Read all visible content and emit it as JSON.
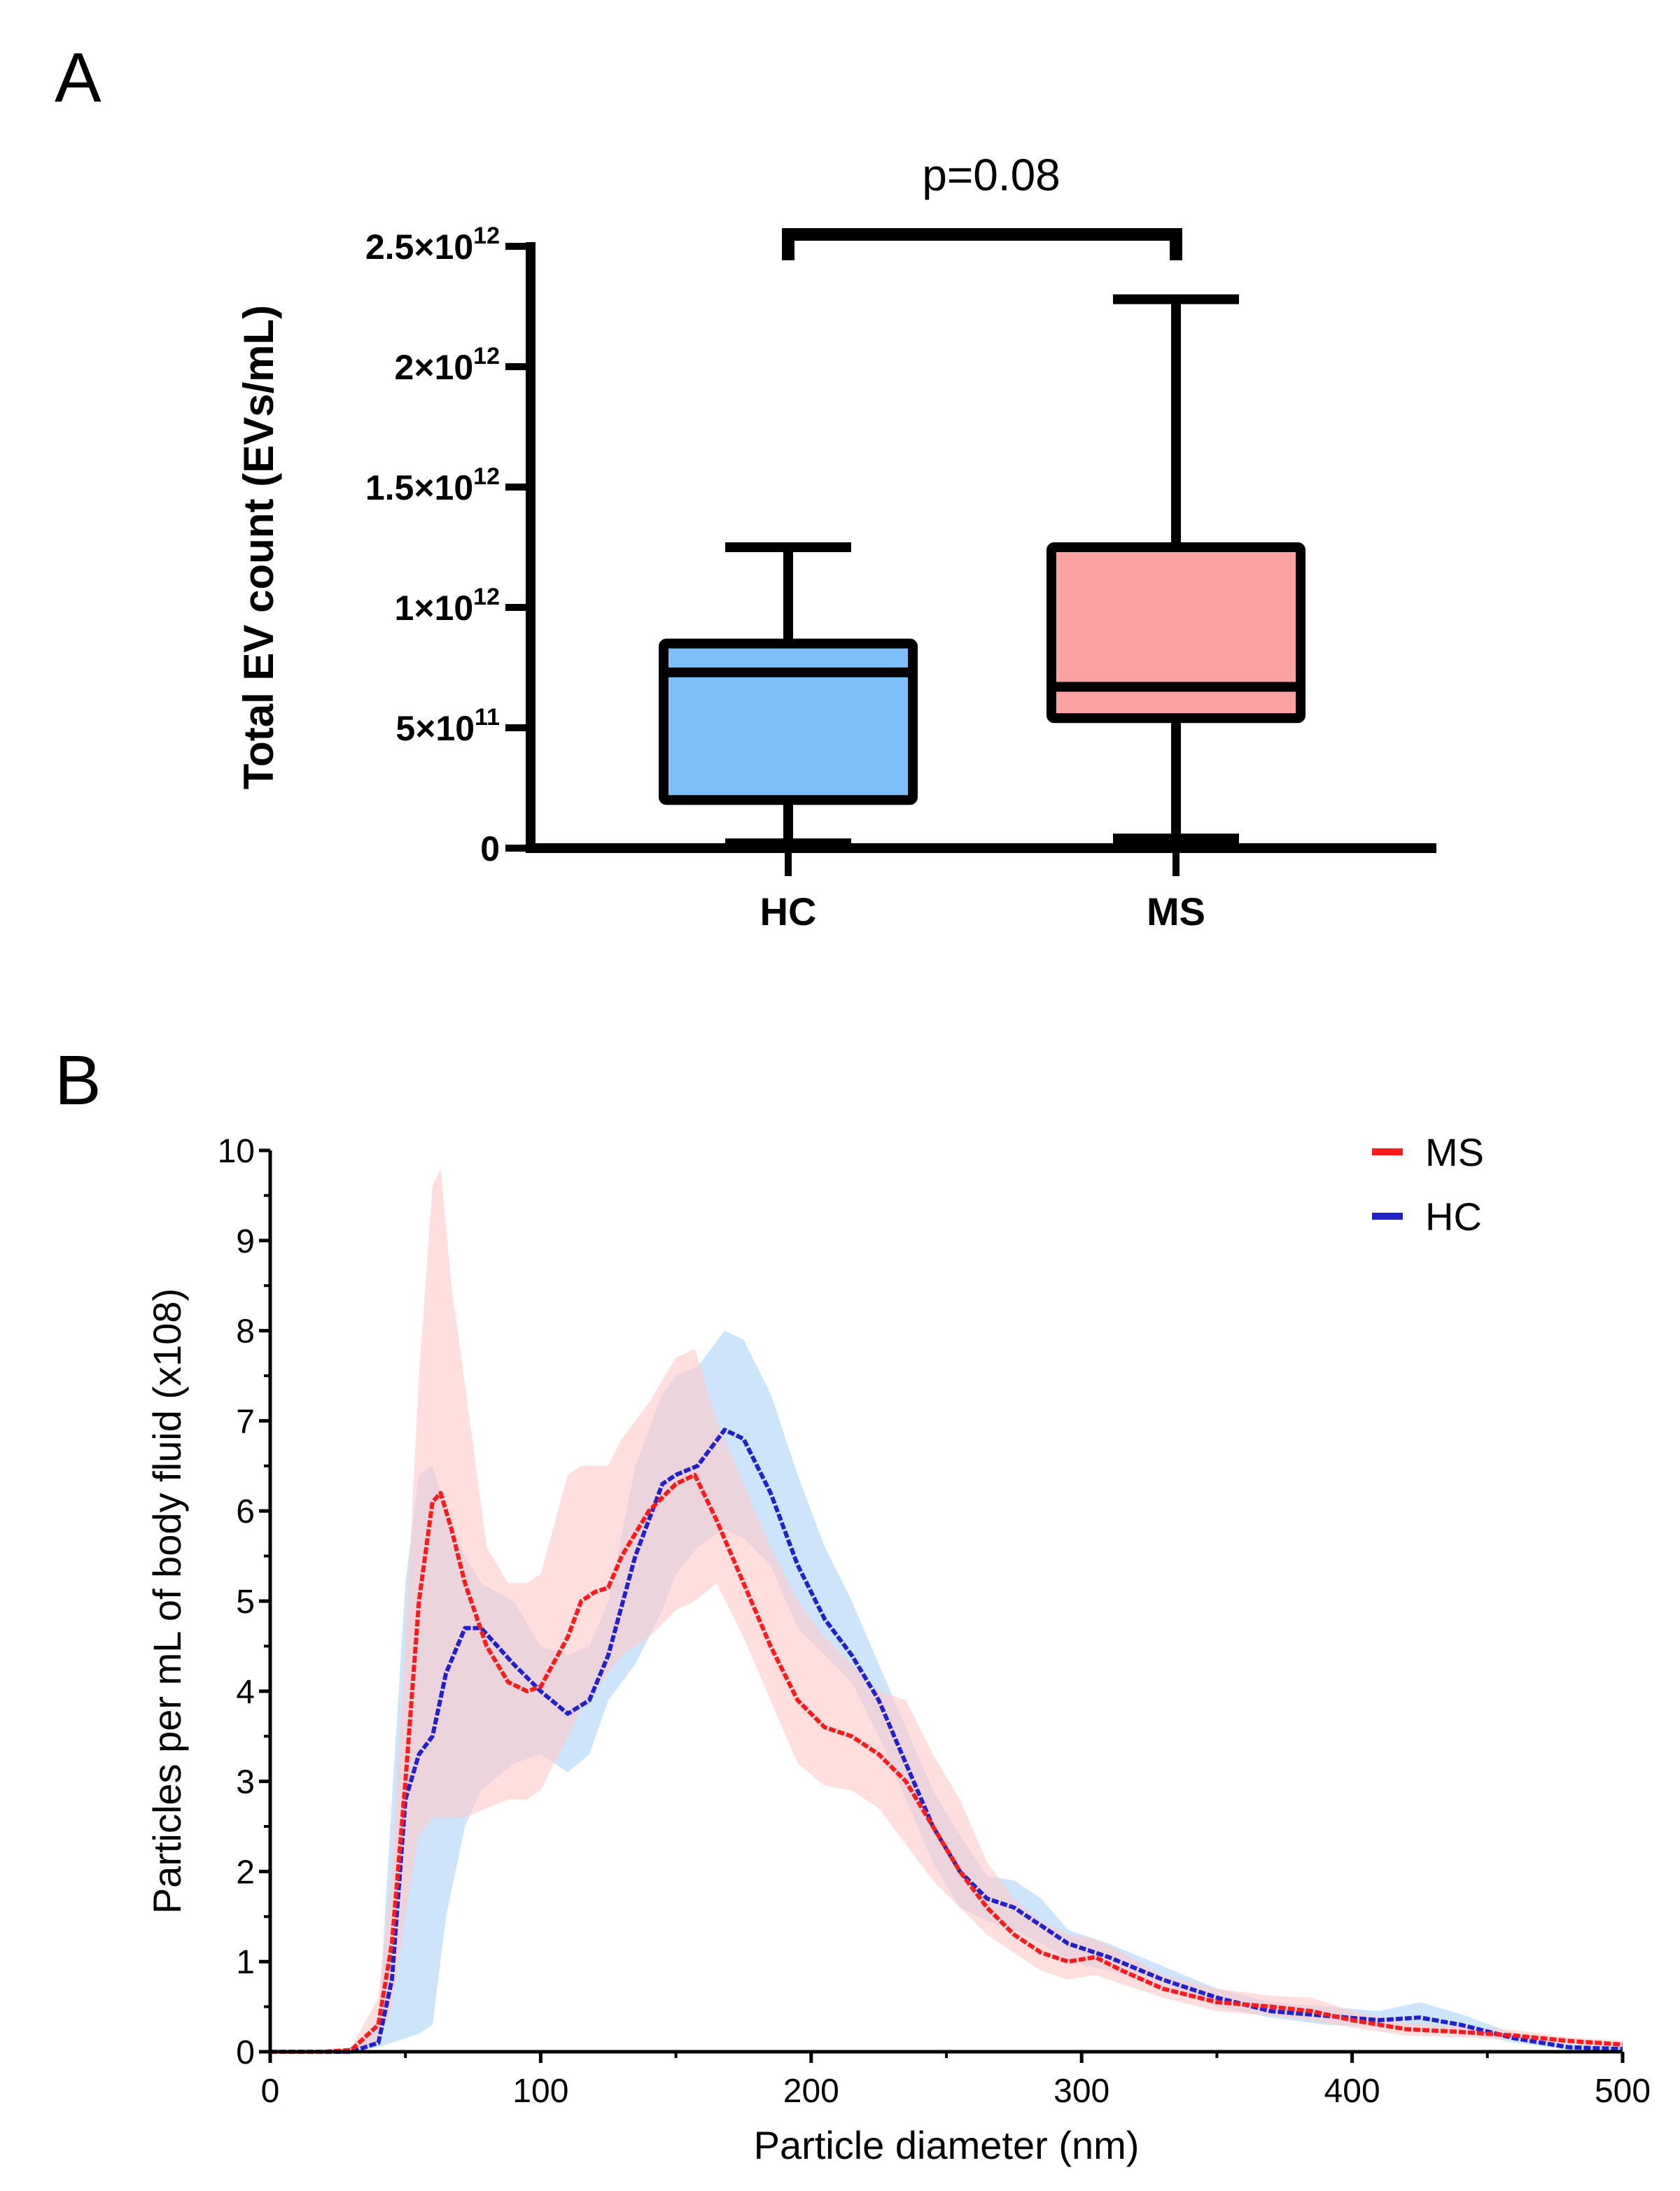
{
  "panels": {
    "a_label": "A",
    "b_label": "B"
  },
  "chart_data": [
    {
      "type": "box",
      "title": "",
      "ylabel": "Total EV count (EVs/mL)",
      "xlabel": "",
      "ylim": [
        0,
        2500000000000.0
      ],
      "yticks": [
        0,
        500000000000.0,
        1000000000000.0,
        1500000000000.0,
        2000000000000.0,
        2500000000000.0
      ],
      "ytick_labels": [
        {
          "base": "0",
          "exp": ""
        },
        {
          "base": "5×10",
          "exp": "11"
        },
        {
          "base": "1×10",
          "exp": "12"
        },
        {
          "base": "1.5×10",
          "exp": "12"
        },
        {
          "base": "2×10",
          "exp": "12"
        },
        {
          "base": "2.5×10",
          "exp": "12"
        }
      ],
      "categories": [
        "HC",
        "MS"
      ],
      "boxes": [
        {
          "name": "HC",
          "min": 20000000000.0,
          "q1": 200000000000.0,
          "median": 730000000000.0,
          "q3": 850000000000.0,
          "max": 1250000000000.0,
          "color": "#7dbff8"
        },
        {
          "name": "MS",
          "min": 40000000000.0,
          "q1": 540000000000.0,
          "median": 670000000000.0,
          "q3": 1250000000000.0,
          "max": 2280000000000.0,
          "color": "#fca2a2"
        }
      ],
      "annotation": "p=0.08"
    },
    {
      "type": "line",
      "title": "",
      "xlabel": "Particle diameter (nm)",
      "ylabel": "Particles per mL of body fluid (x108)",
      "xlim": [
        0,
        500
      ],
      "ylim": [
        0,
        10
      ],
      "xticks": [
        0,
        100,
        200,
        300,
        400,
        500
      ],
      "yticks": [
        0,
        1,
        2,
        3,
        4,
        5,
        6,
        7,
        8,
        9,
        10
      ],
      "legend": "top-right",
      "series": [
        {
          "name": "MS",
          "color": "#ff1a1a",
          "band_color": "#ffc8c8",
          "points": [
            [
              0,
              0,
              0,
              0
            ],
            [
              20,
              0,
              0,
              0
            ],
            [
              30,
              0.02,
              0,
              0.05
            ],
            [
              40,
              0.3,
              0.1,
              0.6
            ],
            [
              45,
              1.2,
              0.5,
              2.0
            ],
            [
              50,
              3.0,
              1.5,
              4.5
            ],
            [
              55,
              5.0,
              2.4,
              7.5
            ],
            [
              60,
              6.1,
              2.6,
              9.6
            ],
            [
              63,
              6.2,
              2.6,
              9.8
            ],
            [
              67,
              5.8,
              2.6,
              8.5
            ],
            [
              72,
              5.2,
              2.6,
              7.4
            ],
            [
              80,
              4.5,
              2.7,
              5.6
            ],
            [
              88,
              4.1,
              2.8,
              5.2
            ],
            [
              95,
              4.0,
              2.8,
              5.2
            ],
            [
              100,
              4.05,
              2.9,
              5.3
            ],
            [
              110,
              4.6,
              3.5,
              6.4
            ],
            [
              115,
              5.0,
              3.8,
              6.5
            ],
            [
              120,
              5.1,
              4.0,
              6.5
            ],
            [
              125,
              5.15,
              4.2,
              6.5
            ],
            [
              130,
              5.5,
              4.4,
              6.8
            ],
            [
              140,
              6.0,
              4.6,
              7.2
            ],
            [
              150,
              6.3,
              4.9,
              7.7
            ],
            [
              157,
              6.4,
              5.0,
              7.8
            ],
            [
              165,
              5.9,
              5.2,
              7.0
            ],
            [
              175,
              5.2,
              4.6,
              6.3
            ],
            [
              185,
              4.5,
              3.9,
              5.6
            ],
            [
              195,
              3.9,
              3.2,
              5.0
            ],
            [
              205,
              3.6,
              2.95,
              4.6
            ],
            [
              215,
              3.5,
              2.9,
              4.3
            ],
            [
              225,
              3.3,
              2.7,
              4.0
            ],
            [
              235,
              3.0,
              2.3,
              3.9
            ],
            [
              245,
              2.5,
              1.9,
              3.3
            ],
            [
              255,
              2.0,
              1.6,
              2.8
            ],
            [
              265,
              1.6,
              1.3,
              2.1
            ],
            [
              275,
              1.3,
              1.1,
              1.7
            ],
            [
              285,
              1.1,
              0.9,
              1.45
            ],
            [
              295,
              1.0,
              0.8,
              1.3
            ],
            [
              305,
              1.05,
              0.85,
              1.25
            ],
            [
              315,
              0.9,
              0.75,
              1.1
            ],
            [
              330,
              0.7,
              0.6,
              0.85
            ],
            [
              350,
              0.55,
              0.45,
              0.7
            ],
            [
              370,
              0.5,
              0.4,
              0.62
            ],
            [
              385,
              0.45,
              0.35,
              0.6
            ],
            [
              400,
              0.35,
              0.27,
              0.45
            ],
            [
              420,
              0.25,
              0.18,
              0.32
            ],
            [
              440,
              0.22,
              0.16,
              0.28
            ],
            [
              460,
              0.18,
              0.13,
              0.24
            ],
            [
              480,
              0.12,
              0.08,
              0.16
            ],
            [
              500,
              0.08,
              0.05,
              0.12
            ]
          ]
        },
        {
          "name": "HC",
          "color": "#2222cc",
          "band_color": "#bcdcf8",
          "points": [
            [
              0,
              0,
              0,
              0
            ],
            [
              30,
              0,
              0,
              0
            ],
            [
              40,
              0.1,
              0.05,
              0.3
            ],
            [
              45,
              0.8,
              0.1,
              2.8
            ],
            [
              50,
              2.8,
              0.15,
              5.2
            ],
            [
              55,
              3.3,
              0.2,
              6.4
            ],
            [
              60,
              3.5,
              0.3,
              6.5
            ],
            [
              65,
              4.2,
              1.5,
              6.0
            ],
            [
              72,
              4.7,
              2.5,
              5.5
            ],
            [
              78,
              4.7,
              2.9,
              5.2
            ],
            [
              90,
              4.3,
              3.2,
              5.0
            ],
            [
              100,
              4.0,
              3.3,
              4.5
            ],
            [
              110,
              3.75,
              3.1,
              4.4
            ],
            [
              118,
              3.9,
              3.3,
              4.5
            ],
            [
              125,
              4.4,
              3.9,
              5.0
            ],
            [
              135,
              5.5,
              4.3,
              6.5
            ],
            [
              145,
              6.3,
              4.9,
              7.3
            ],
            [
              150,
              6.4,
              5.3,
              7.5
            ],
            [
              158,
              6.5,
              5.6,
              7.6
            ],
            [
              168,
              6.9,
              5.8,
              8.0
            ],
            [
              175,
              6.8,
              5.7,
              7.9
            ],
            [
              185,
              6.2,
              5.4,
              7.3
            ],
            [
              195,
              5.4,
              4.7,
              6.4
            ],
            [
              205,
              4.8,
              4.4,
              5.6
            ],
            [
              215,
              4.4,
              4.1,
              5.0
            ],
            [
              225,
              3.9,
              3.5,
              4.3
            ],
            [
              235,
              3.2,
              2.8,
              3.6
            ],
            [
              245,
              2.5,
              2.1,
              2.9
            ],
            [
              255,
              2.0,
              1.6,
              2.4
            ],
            [
              265,
              1.7,
              1.45,
              1.95
            ],
            [
              275,
              1.6,
              1.35,
              1.9
            ],
            [
              285,
              1.4,
              1.2,
              1.7
            ],
            [
              295,
              1.2,
              1.0,
              1.35
            ],
            [
              310,
              1.05,
              0.9,
              1.2
            ],
            [
              330,
              0.8,
              0.7,
              0.95
            ],
            [
              350,
              0.6,
              0.5,
              0.7
            ],
            [
              370,
              0.45,
              0.38,
              0.55
            ],
            [
              390,
              0.4,
              0.3,
              0.5
            ],
            [
              410,
              0.35,
              0.28,
              0.45
            ],
            [
              425,
              0.38,
              0.28,
              0.55
            ],
            [
              440,
              0.3,
              0.22,
              0.42
            ],
            [
              460,
              0.15,
              0.1,
              0.2
            ],
            [
              480,
              0.05,
              0.02,
              0.08
            ],
            [
              500,
              0.03,
              0.01,
              0.05
            ]
          ]
        }
      ]
    }
  ]
}
